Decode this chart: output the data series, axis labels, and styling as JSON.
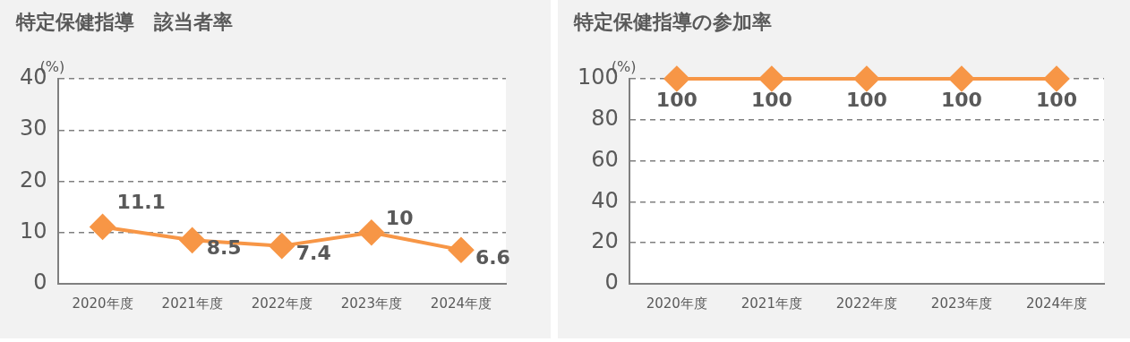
{
  "chart_data": [
    {
      "type": "line",
      "title": "特定保健指導　該当者率",
      "ylabel": "(%)",
      "categories": [
        "2020年度",
        "2021年度",
        "2022年度",
        "2023年度",
        "2024年度"
      ],
      "series": [
        {
          "color": "#f79646",
          "values": [
            11.1,
            8.5,
            7.4,
            10,
            6.6
          ]
        }
      ],
      "ylim": [
        0,
        40
      ],
      "yticks": [
        0,
        10,
        20,
        30,
        40
      ],
      "grid": "y",
      "legend": false,
      "marker": "diamond",
      "line_style": "solid",
      "data_labels": true
    },
    {
      "type": "line",
      "title": "特定保健指導の参加率",
      "ylabel": "(%)",
      "categories": [
        "2020年度",
        "2021年度",
        "2022年度",
        "2023年度",
        "2024年度"
      ],
      "series": [
        {
          "color": "#f79646",
          "values": [
            100,
            100,
            100,
            100,
            100
          ]
        }
      ],
      "ylim": [
        0,
        100
      ],
      "yticks": [
        0,
        20,
        40,
        60,
        80,
        100
      ],
      "grid": "y",
      "legend": false,
      "marker": "diamond",
      "line_style": "solid",
      "data_labels": true
    }
  ]
}
